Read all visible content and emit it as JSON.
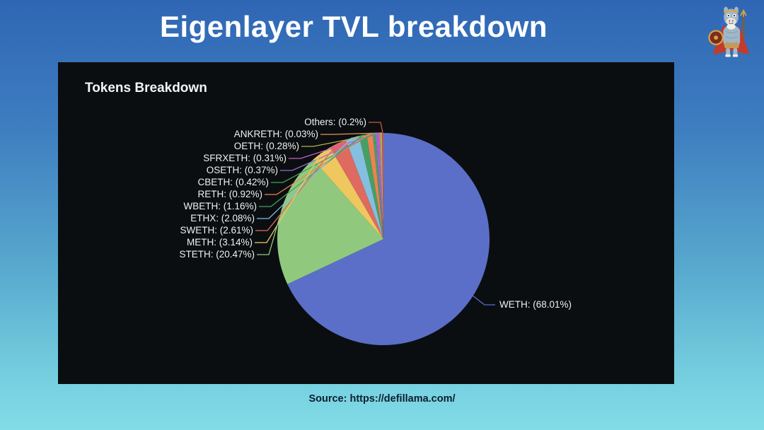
{
  "header": {
    "title": "Eigenlayer TVL breakdown"
  },
  "chart": {
    "title": "Tokens Breakdown"
  },
  "footer": {
    "source": "Source: https://defillama.com/"
  },
  "mascot": {
    "name": "defillama-llama-mascot"
  },
  "colors": {
    "background_top": "#2f66b4",
    "background_bottom": "#81dce7",
    "panel_background": "#0b0e10",
    "title_text": "#ffffff",
    "label_text": "#f0f0f0",
    "source_text": "#0e1e2e"
  },
  "chart_data": {
    "type": "pie",
    "title": "Tokens Breakdown",
    "unit": "percent",
    "start_angle_deg": 90,
    "direction": "clockwise",
    "legend_position": "none",
    "slices": [
      {
        "name": "WETH",
        "value": 68.01,
        "label": "WETH: (68.01%)",
        "color": "#5b6fc8"
      },
      {
        "name": "STETH",
        "value": 20.47,
        "label": "STETH: (20.47%)",
        "color": "#90c97e"
      },
      {
        "name": "METH",
        "value": 3.14,
        "label": "METH: (3.14%)",
        "color": "#efc75f"
      },
      {
        "name": "SWETH",
        "value": 2.61,
        "label": "SWETH: (2.61%)",
        "color": "#de6a60"
      },
      {
        "name": "ETHX",
        "value": 2.08,
        "label": "ETHX: (2.08%)",
        "color": "#85bfe0"
      },
      {
        "name": "WBETH",
        "value": 1.16,
        "label": "WBETH: (1.16%)",
        "color": "#46a064"
      },
      {
        "name": "RETH",
        "value": 0.92,
        "label": "RETH: (0.92%)",
        "color": "#ed8252"
      },
      {
        "name": "CBETH",
        "value": 0.42,
        "label": "CBETH: (0.42%)",
        "color": "#44a15e"
      },
      {
        "name": "OSETH",
        "value": 0.37,
        "label": "OSETH: (0.37%)",
        "color": "#9b6ad0"
      },
      {
        "name": "SFRXETH",
        "value": 0.31,
        "label": "SFRXETH: (0.31%)",
        "color": "#c360c3"
      },
      {
        "name": "OETH",
        "value": 0.28,
        "label": "OETH: (0.28%)",
        "color": "#b0b24e"
      },
      {
        "name": "ANKRETH",
        "value": 0.03,
        "label": "ANKRETH: (0.03%)",
        "color": "#e0995a"
      },
      {
        "name": "Others",
        "value": 0.2,
        "label": "Others: (0.2%)",
        "color": "#cf5349"
      }
    ]
  }
}
